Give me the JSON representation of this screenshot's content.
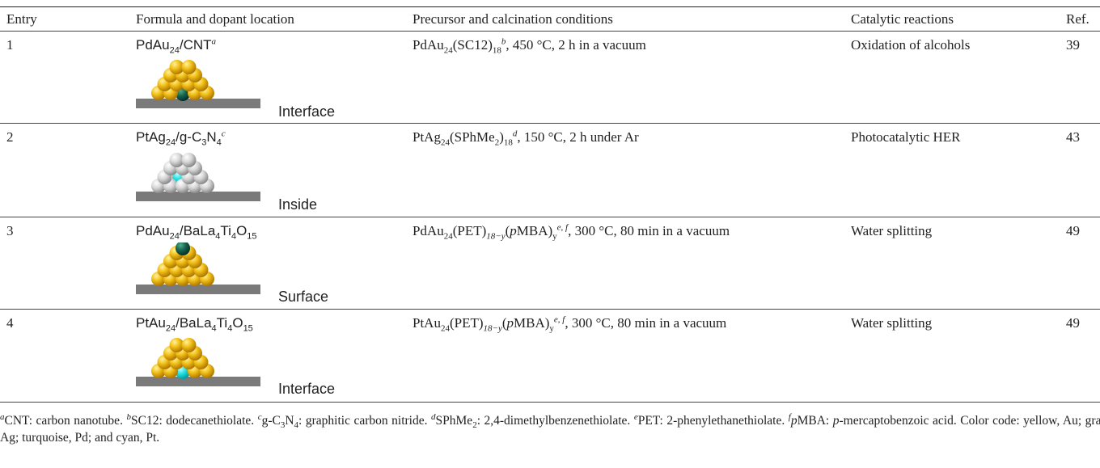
{
  "table": {
    "headers": [
      "Entry",
      "Formula and dopant location",
      "Precursor and calcination conditions",
      "Catalytic reactions",
      "Ref."
    ],
    "rows": [
      {
        "entry": "1",
        "formula": [
          "PdAu",
          "24",
          "/CNT"
        ],
        "note": "a",
        "location": "Interface",
        "precursor": [
          "PdAu",
          "24",
          "(SC12)",
          "18",
          "b",
          ", 450 °C, 2 h in a vacuum"
        ],
        "reaction": "Oxidation of alcohols",
        "ref": "39"
      },
      {
        "entry": "2",
        "formula": [
          "PtAg",
          "24",
          "/g-C",
          "3",
          "N",
          "4"
        ],
        "note": "c",
        "location": "Inside",
        "precursor": [
          "PtAg",
          "24",
          "(SPhMe",
          "2",
          ")",
          "18",
          "d",
          ", 150 °C, 2 h under Ar"
        ],
        "reaction": "Photocatalytic HER",
        "ref": "43"
      },
      {
        "entry": "3",
        "formula": [
          "PdAu",
          "24",
          "/BaLa",
          "4",
          "Ti",
          "4",
          "O",
          "15"
        ],
        "location": "Surface",
        "precursor": [
          "PdAu",
          "24",
          "(PET)",
          "18−y",
          "(",
          "p",
          "MBA)",
          "y",
          "e, f",
          ", 300 °C, 80 min in a vacuum"
        ],
        "reaction": "Water splitting",
        "ref": "49"
      },
      {
        "entry": "4",
        "formula": [
          "PtAu",
          "24",
          "/BaLa",
          "4",
          "Ti",
          "4",
          "O",
          "15"
        ],
        "location": "Interface",
        "precursor": [
          "PtAu",
          "24",
          "(PET)",
          "18−y",
          "(",
          "p",
          "MBA)",
          "y",
          "e, f",
          ", 300 °C, 80 min in a vacuum"
        ],
        "reaction": "Water splitting",
        "ref": "49"
      }
    ]
  },
  "footnotes": {
    "notes": [
      {
        "mark": "a",
        "parts": [
          "CNT: carbon nanotube."
        ]
      },
      {
        "mark": "b",
        "parts": [
          "SC12: dodecanethiolate."
        ]
      },
      {
        "mark": "c",
        "parts": [
          "g-C",
          "3",
          "N",
          "4",
          ": graphitic carbon nitride."
        ]
      },
      {
        "mark": "d",
        "parts": [
          "SPhMe",
          "2",
          ": 2,4-dimethylbenzenethiolate."
        ]
      },
      {
        "mark": "e",
        "parts": [
          "PET: 2-phenylethanethiolate."
        ]
      },
      {
        "mark": "f",
        "parts": [
          "p",
          "MBA: ",
          "p",
          "-mercaptobenzoic acid."
        ]
      }
    ],
    "color_code": "Color code: yellow, Au; gray, Ag; turquoise, Pd; and cyan, Pt."
  }
}
